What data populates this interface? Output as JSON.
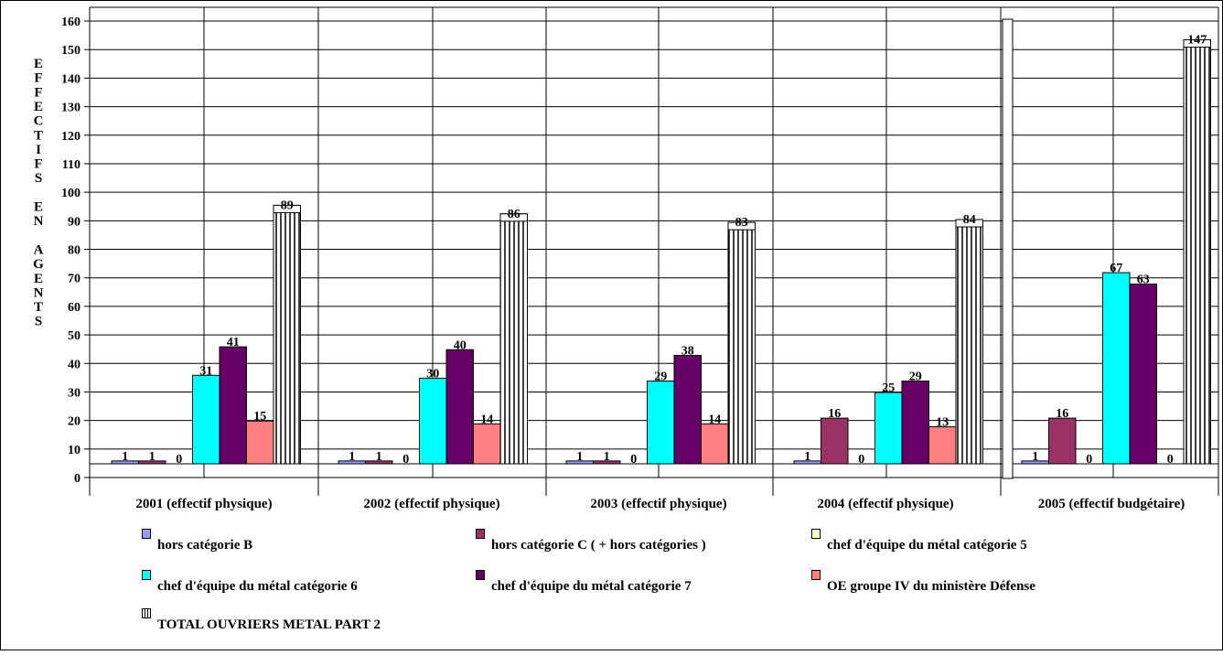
{
  "chart_data": {
    "type": "bar",
    "ylabel": "EFFECTIFS EN AGENTS",
    "ylabel_letters": [
      "E",
      "F",
      "F",
      "E",
      "C",
      "T",
      "I",
      "F",
      "S",
      "",
      "E",
      "N",
      "",
      "A",
      "G",
      "E",
      "N",
      "T",
      "S"
    ],
    "ylim": [
      0,
      160
    ],
    "yticks": [
      0,
      10,
      20,
      30,
      40,
      50,
      60,
      70,
      80,
      90,
      100,
      110,
      120,
      130,
      140,
      150,
      160
    ],
    "grid": true,
    "categories": [
      "2001 (effectif physique)",
      "2002 (effectif physique)",
      "2003 (effectif physique)",
      "2004 (effectif physique)",
      "2005 (effectif budgétaire)"
    ],
    "series": [
      {
        "name": "hors catégorie B",
        "color": "#9999ff",
        "pattern": "solid",
        "values": [
          1,
          1,
          1,
          1,
          1
        ]
      },
      {
        "name": "hors catégorie C ( + hors catégories )",
        "color": "#993366",
        "pattern": "solid",
        "values": [
          1,
          1,
          1,
          16,
          16
        ]
      },
      {
        "name": "chef d'équipe du métal catégorie 5",
        "color": "#ffffcc",
        "pattern": "solid",
        "values": [
          0,
          0,
          0,
          0,
          0
        ]
      },
      {
        "name": "chef d'équipe du métal catégorie 6",
        "color": "#00ffff",
        "pattern": "solid",
        "values": [
          31,
          30,
          29,
          25,
          67
        ]
      },
      {
        "name": "chef d'équipe du métal catégorie 7",
        "color": "#660066",
        "pattern": "solid",
        "values": [
          41,
          40,
          38,
          29,
          63
        ]
      },
      {
        "name": "OE groupe IV du ministère Défense",
        "color": "#ff8080",
        "pattern": "solid",
        "values": [
          15,
          14,
          14,
          13,
          0
        ]
      },
      {
        "name": "TOTAL OUVRIERS METAL PART 2",
        "color": "#ffffff",
        "pattern": "vertical-stripes",
        "values": [
          89,
          86,
          83,
          84,
          147
        ]
      }
    ],
    "legend_position": "bottom"
  }
}
